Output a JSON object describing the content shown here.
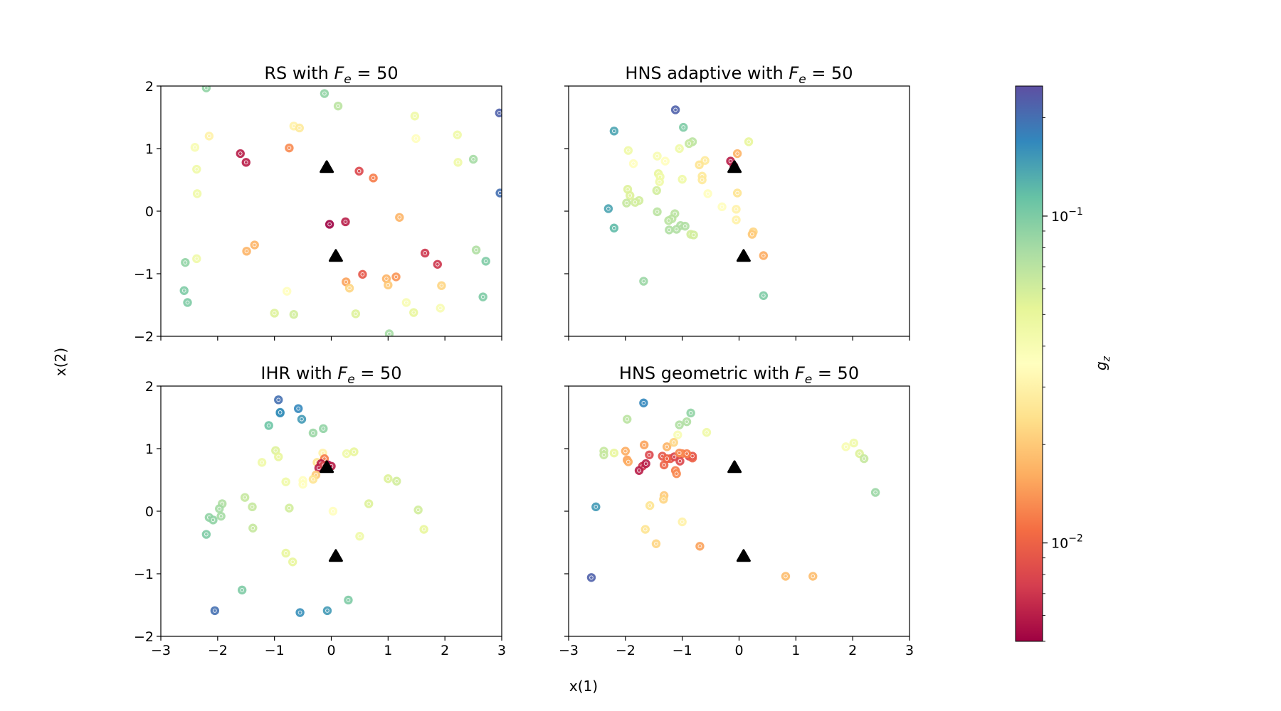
{
  "figure": {
    "xlabel": "x(1)",
    "ylabel": "x(2)",
    "colorbar_label": "g",
    "colorbar_label_sub": "z",
    "colorbar_ticks": [
      {
        "value": 0.1,
        "base": "10",
        "exp": "−1"
      },
      {
        "value": 0.01,
        "base": "10",
        "exp": "−2"
      }
    ],
    "colorbar_range": [
      0.005,
      0.25
    ],
    "colormap": "Spectral",
    "marker_color": "#000000"
  },
  "chart_data": [
    {
      "type": "scatter",
      "title_prefix": "RS with ",
      "title_sym": "F",
      "title_sub": "e",
      "title_suffix": " = 50",
      "xlim": [
        -3,
        3
      ],
      "ylim": [
        -2,
        2
      ],
      "xticks": [],
      "yticks": [
        "−2",
        "−1",
        "0",
        "1",
        "2"
      ],
      "points": [
        [
          -2.2,
          1.97,
          0.09
        ],
        [
          -0.12,
          1.88,
          0.09
        ],
        [
          0.12,
          1.68,
          0.07
        ],
        [
          2.96,
          1.57,
          0.22
        ],
        [
          1.47,
          1.52,
          0.045
        ],
        [
          -2.4,
          1.02,
          0.04
        ],
        [
          -2.15,
          1.2,
          0.03
        ],
        [
          -0.66,
          1.36,
          0.03
        ],
        [
          -0.56,
          1.33,
          0.027
        ],
        [
          2.22,
          1.22,
          0.045
        ],
        [
          1.49,
          1.16,
          0.035
        ],
        [
          -1.6,
          0.92,
          0.006
        ],
        [
          -1.5,
          0.78,
          0.006
        ],
        [
          -0.74,
          1.01,
          0.013
        ],
        [
          2.5,
          0.83,
          0.08
        ],
        [
          2.23,
          0.78,
          0.045
        ],
        [
          -2.37,
          0.67,
          0.045
        ],
        [
          0.49,
          0.64,
          0.008
        ],
        [
          0.74,
          0.53,
          0.012
        ],
        [
          -2.36,
          0.28,
          0.045
        ],
        [
          2.97,
          0.29,
          0.2
        ],
        [
          0.25,
          -0.17,
          0.006
        ],
        [
          -0.03,
          -0.21,
          0.005
        ],
        [
          1.2,
          -0.1,
          0.017
        ],
        [
          -1.35,
          -0.54,
          0.017
        ],
        [
          -1.49,
          -0.64,
          0.017
        ],
        [
          1.65,
          -0.67,
          0.007
        ],
        [
          1.87,
          -0.85,
          0.007
        ],
        [
          2.55,
          -0.62,
          0.075
        ],
        [
          2.72,
          -0.8,
          0.1
        ],
        [
          -2.57,
          -0.82,
          0.09
        ],
        [
          -2.37,
          -0.76,
          0.045
        ],
        [
          0.55,
          -1.01,
          0.009
        ],
        [
          1.14,
          -1.05,
          0.014
        ],
        [
          0.97,
          -1.08,
          0.017
        ],
        [
          1.0,
          -1.18,
          0.02
        ],
        [
          1.94,
          -1.19,
          0.022
        ],
        [
          0.26,
          -1.13,
          0.015
        ],
        [
          0.32,
          -1.23,
          0.022
        ],
        [
          -2.59,
          -1.27,
          0.1
        ],
        [
          -2.53,
          -1.46,
          0.1
        ],
        [
          -0.78,
          -1.28,
          0.035
        ],
        [
          2.67,
          -1.37,
          0.1
        ],
        [
          1.32,
          -1.46,
          0.04
        ],
        [
          1.45,
          -1.62,
          0.05
        ],
        [
          1.92,
          -1.55,
          0.04
        ],
        [
          -1.0,
          -1.63,
          0.055
        ],
        [
          -0.66,
          -1.65,
          0.06
        ],
        [
          0.43,
          -1.64,
          0.055
        ],
        [
          1.02,
          -1.96,
          0.08
        ]
      ]
    },
    {
      "type": "scatter",
      "title_prefix": "HNS adaptive with ",
      "title_sym": "F",
      "title_sub": "e",
      "title_suffix": " = 50",
      "xlim": [
        -3,
        3
      ],
      "ylim": [
        -2,
        2
      ],
      "xticks": [],
      "yticks": [],
      "points": [
        [
          -1.12,
          1.62,
          0.22
        ],
        [
          -2.2,
          1.28,
          0.14
        ],
        [
          -0.98,
          1.34,
          0.1
        ],
        [
          -0.82,
          1.11,
          0.07
        ],
        [
          -0.88,
          1.08,
          0.065
        ],
        [
          0.17,
          1.11,
          0.05
        ],
        [
          -1.95,
          0.97,
          0.045
        ],
        [
          -1.44,
          0.88,
          0.04
        ],
        [
          -1.05,
          1.0,
          0.045
        ],
        [
          -1.3,
          0.8,
          0.035
        ],
        [
          -0.6,
          0.81,
          0.027
        ],
        [
          -0.7,
          0.74,
          0.025
        ],
        [
          -1.86,
          0.76,
          0.035
        ],
        [
          -0.03,
          0.92,
          0.017
        ],
        [
          -0.15,
          0.8,
          0.006
        ],
        [
          -0.09,
          0.72,
          0.006
        ],
        [
          -1.42,
          0.6,
          0.05
        ],
        [
          -1.39,
          0.55,
          0.045
        ],
        [
          -1.4,
          0.47,
          0.045
        ],
        [
          -0.65,
          0.56,
          0.027
        ],
        [
          -0.65,
          0.5,
          0.027
        ],
        [
          -1.0,
          0.51,
          0.045
        ],
        [
          -1.96,
          0.35,
          0.055
        ],
        [
          -1.92,
          0.25,
          0.055
        ],
        [
          -1.76,
          0.17,
          0.06
        ],
        [
          -1.98,
          0.13,
          0.065
        ],
        [
          -1.83,
          0.14,
          0.06
        ],
        [
          -1.45,
          0.33,
          0.06
        ],
        [
          -0.55,
          0.28,
          0.035
        ],
        [
          -0.3,
          0.07,
          0.035
        ],
        [
          -0.03,
          0.29,
          0.025
        ],
        [
          -0.05,
          0.03,
          0.03
        ],
        [
          -2.3,
          0.04,
          0.14
        ],
        [
          -1.44,
          -0.01,
          0.07
        ],
        [
          -1.13,
          -0.04,
          0.07
        ],
        [
          -1.18,
          -0.12,
          0.07
        ],
        [
          -1.24,
          -0.15,
          0.07
        ],
        [
          -1.03,
          -0.23,
          0.075
        ],
        [
          -1.23,
          -0.3,
          0.075
        ],
        [
          -1.1,
          -0.29,
          0.075
        ],
        [
          -0.85,
          -0.37,
          0.06
        ],
        [
          -0.8,
          -0.38,
          0.06
        ],
        [
          -0.05,
          -0.14,
          0.03
        ],
        [
          0.25,
          -0.33,
          0.022
        ],
        [
          0.23,
          -0.37,
          0.02
        ],
        [
          -2.2,
          -0.27,
          0.12
        ],
        [
          0.43,
          -0.71,
          0.016
        ],
        [
          -1.68,
          -1.12,
          0.085
        ],
        [
          0.43,
          -1.35,
          0.1
        ],
        [
          -0.95,
          -0.24,
          0.075
        ]
      ]
    },
    {
      "type": "scatter",
      "title_prefix": "IHR with ",
      "title_sym": "F",
      "title_sub": "e",
      "title_suffix": " = 50",
      "xlim": [
        -3,
        3
      ],
      "ylim": [
        -2,
        2
      ],
      "xticks": [
        "−3",
        "−2",
        "−1",
        "0",
        "1",
        "2",
        "3"
      ],
      "yticks": [
        "−2",
        "−1",
        "0",
        "1",
        "2"
      ],
      "points": [
        [
          -0.93,
          1.78,
          0.2
        ],
        [
          -0.9,
          1.57,
          0.16
        ],
        [
          -0.58,
          1.64,
          0.17
        ],
        [
          -0.52,
          1.47,
          0.15
        ],
        [
          -1.1,
          1.37,
          0.11
        ],
        [
          -0.32,
          1.25,
          0.085
        ],
        [
          -0.14,
          1.32,
          0.09
        ],
        [
          -0.98,
          0.97,
          0.055
        ],
        [
          -0.93,
          0.87,
          0.05
        ],
        [
          -1.22,
          0.78,
          0.045
        ],
        [
          -0.15,
          0.93,
          0.03
        ],
        [
          -0.25,
          0.78,
          0.025
        ],
        [
          0.27,
          0.92,
          0.045
        ],
        [
          0.4,
          0.95,
          0.05
        ],
        [
          -0.12,
          0.84,
          0.012
        ],
        [
          -0.06,
          0.74,
          0.005
        ],
        [
          0.0,
          0.72,
          0.006
        ],
        [
          -0.18,
          0.76,
          0.006
        ],
        [
          -0.22,
          0.69,
          0.006
        ],
        [
          -0.13,
          0.73,
          0.008
        ],
        [
          -0.27,
          0.58,
          0.02
        ],
        [
          -0.32,
          0.51,
          0.025
        ],
        [
          -0.5,
          0.49,
          0.035
        ],
        [
          -0.5,
          0.43,
          0.035
        ],
        [
          -0.8,
          0.47,
          0.045
        ],
        [
          1.0,
          0.52,
          0.055
        ],
        [
          1.15,
          0.48,
          0.06
        ],
        [
          -1.52,
          0.22,
          0.065
        ],
        [
          -1.92,
          0.12,
          0.075
        ],
        [
          -1.97,
          0.04,
          0.08
        ],
        [
          -2.15,
          -0.1,
          0.09
        ],
        [
          -2.08,
          -0.14,
          0.09
        ],
        [
          -1.94,
          -0.08,
          0.08
        ],
        [
          -1.39,
          0.07,
          0.065
        ],
        [
          -0.74,
          0.05,
          0.06
        ],
        [
          0.66,
          0.12,
          0.055
        ],
        [
          1.53,
          0.02,
          0.06
        ],
        [
          0.03,
          0.0,
          0.035
        ],
        [
          -2.2,
          -0.37,
          0.1
        ],
        [
          -1.38,
          -0.27,
          0.065
        ],
        [
          1.63,
          -0.29,
          0.05
        ],
        [
          0.5,
          -0.4,
          0.045
        ],
        [
          -0.8,
          -0.67,
          0.05
        ],
        [
          -0.68,
          -0.81,
          0.05
        ],
        [
          -1.57,
          -1.26,
          0.1
        ],
        [
          0.3,
          -1.42,
          0.1
        ],
        [
          -2.05,
          -1.59,
          0.2
        ],
        [
          -0.55,
          -1.62,
          0.16
        ],
        [
          -0.07,
          -1.59,
          0.15
        ],
        [
          -0.9,
          1.58,
          0.16
        ]
      ]
    },
    {
      "type": "scatter",
      "title_prefix": "HNS geometric with ",
      "title_sym": "F",
      "title_sub": "e",
      "title_suffix": " = 50",
      "xlim": [
        -3,
        3
      ],
      "ylim": [
        -2,
        2
      ],
      "xticks": [
        "−3",
        "−2",
        "−1",
        "0",
        "1",
        "2",
        "3"
      ],
      "yticks": [],
      "points": [
        [
          -1.68,
          1.73,
          0.17
        ],
        [
          -0.85,
          1.57,
          0.09
        ],
        [
          -1.97,
          1.47,
          0.07
        ],
        [
          -1.05,
          1.38,
          0.075
        ],
        [
          -0.92,
          1.43,
          0.075
        ],
        [
          -0.57,
          1.26,
          0.045
        ],
        [
          -1.08,
          1.22,
          0.04
        ],
        [
          2.02,
          1.09,
          0.045
        ],
        [
          1.88,
          1.03,
          0.04
        ],
        [
          2.12,
          0.92,
          0.055
        ],
        [
          2.2,
          0.84,
          0.065
        ],
        [
          -2.38,
          0.96,
          0.065
        ],
        [
          -2.38,
          0.9,
          0.065
        ],
        [
          -2.2,
          0.93,
          0.05
        ],
        [
          -2.0,
          0.96,
          0.016
        ],
        [
          -1.67,
          1.06,
          0.015
        ],
        [
          -1.27,
          1.03,
          0.017
        ],
        [
          -1.15,
          1.1,
          0.022
        ],
        [
          -1.0,
          0.92,
          0.012
        ],
        [
          -0.88,
          0.88,
          0.008
        ],
        [
          -0.82,
          0.85,
          0.01
        ],
        [
          -1.58,
          0.9,
          0.008
        ],
        [
          -1.35,
          0.88,
          0.009
        ],
        [
          -1.21,
          0.84,
          0.009
        ],
        [
          -1.14,
          0.87,
          0.008
        ],
        [
          -1.04,
          0.8,
          0.008
        ],
        [
          -1.97,
          0.82,
          0.015
        ],
        [
          -1.95,
          0.79,
          0.016
        ],
        [
          -1.32,
          0.74,
          0.01
        ],
        [
          -1.12,
          0.65,
          0.012
        ],
        [
          -1.7,
          0.72,
          0.007
        ],
        [
          -1.76,
          0.65,
          0.006
        ],
        [
          -1.64,
          0.76,
          0.006
        ],
        [
          -1.1,
          0.6,
          0.013
        ],
        [
          -1.32,
          0.25,
          0.02
        ],
        [
          -1.33,
          0.19,
          0.022
        ],
        [
          -1.57,
          0.09,
          0.025
        ],
        [
          -2.52,
          0.07,
          0.15
        ],
        [
          2.4,
          0.3,
          0.085
        ],
        [
          -1.0,
          -0.17,
          0.03
        ],
        [
          -1.65,
          -0.29,
          0.025
        ],
        [
          -1.46,
          -0.52,
          0.022
        ],
        [
          -0.69,
          -0.56,
          0.015
        ],
        [
          0.82,
          -1.04,
          0.018
        ],
        [
          1.3,
          -1.04,
          0.018
        ],
        [
          -2.6,
          -1.06,
          0.22
        ],
        [
          -0.82,
          0.88,
          0.009
        ],
        [
          -1.27,
          0.84,
          0.01
        ],
        [
          -0.92,
          0.92,
          0.012
        ],
        [
          -1.05,
          0.93,
          0.013
        ]
      ]
    }
  ]
}
